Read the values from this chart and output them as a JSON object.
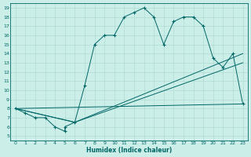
{
  "xlabel": "Humidex (Indice chaleur)",
  "bg_color": "#cceee8",
  "grid_color": "#aad8d2",
  "line_color": "#006666",
  "xlim": [
    -0.5,
    23.5
  ],
  "ylim": [
    4.5,
    19.5
  ],
  "xticks": [
    0,
    1,
    2,
    3,
    4,
    5,
    6,
    7,
    8,
    9,
    10,
    11,
    12,
    13,
    14,
    15,
    16,
    17,
    18,
    19,
    20,
    21,
    22,
    23
  ],
  "yticks": [
    5,
    6,
    7,
    8,
    9,
    10,
    11,
    12,
    13,
    14,
    15,
    16,
    17,
    18,
    19
  ],
  "curve_x": [
    0,
    1,
    2,
    3,
    4,
    5,
    5,
    6,
    7,
    8,
    9,
    10,
    11,
    12,
    13,
    14,
    15,
    16,
    17,
    18,
    19,
    20,
    21,
    22,
    23
  ],
  "curve_y": [
    8,
    7.5,
    7,
    7,
    6,
    5.5,
    6,
    6.5,
    10.5,
    15,
    16,
    16,
    18,
    18.5,
    19,
    18,
    15,
    17.5,
    18,
    18,
    17,
    13.5,
    12.5,
    14,
    8.5
  ],
  "line1_x": [
    0,
    23
  ],
  "line1_y": [
    8,
    8.5
  ],
  "line2_x": [
    0,
    6,
    23
  ],
  "line2_y": [
    8,
    6.5,
    14
  ],
  "line3_x": [
    0,
    6,
    23
  ],
  "line3_y": [
    8,
    6.5,
    13
  ]
}
